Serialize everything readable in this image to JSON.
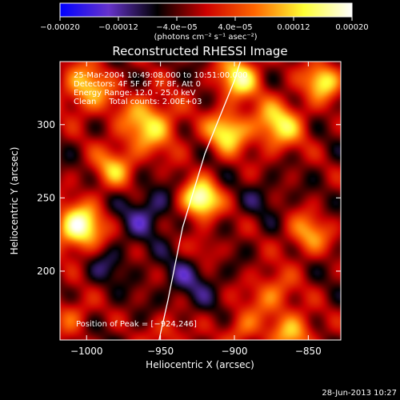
{
  "chart_data": {
    "type": "heatmap",
    "title": "Reconstructed RHESSI Image",
    "xlabel": "Heliocentric X (arcsec)",
    "ylabel": "Heliocentric Y (arcsec)",
    "xlim": [
      -1018,
      -828
    ],
    "ylim": [
      153,
      343
    ],
    "xticks": [
      -1000,
      -950,
      -900,
      -850
    ],
    "xtick_labels": [
      "−1000",
      "−950",
      "−900",
      "−850"
    ],
    "yticks": [
      200,
      250,
      300
    ],
    "ytick_labels": [
      "200",
      "250",
      "300"
    ],
    "info_lines": [
      "25-Mar-2004 10:49:08.000 to 10:51:00.000",
      "Detectors: 4F 5F 6F 7F 8F, Att 0",
      "Energy Range: 12.0 - 25.0 keV",
      "Clean     Total counts: 2.00E+03"
    ],
    "peak_label": "Position of Peak = [−924,246]",
    "peak": [
      -924,
      246
    ],
    "colorbar": {
      "range": [
        -0.0002,
        0.0002
      ],
      "ticks": [
        -0.0002,
        -0.00012,
        -4e-05,
        4e-05,
        0.00012,
        0.0002
      ],
      "tick_labels": [
        "−0.00020",
        "−0.00012",
        "−4.0e−05",
        "4.0e−05",
        "0.00012",
        "0.00020"
      ],
      "unit_label": "(photons cm⁻² s⁻¹ asec⁻²)",
      "colors": [
        "#0000ff",
        "#6633cc",
        "#000000",
        "#cc0000",
        "#ff6600",
        "#ffff33",
        "#ffffff"
      ]
    },
    "blobs": [
      {
        "x": -923,
        "y": 249,
        "r": 9,
        "amp": 0.00023
      },
      {
        "x": -1005,
        "y": 230,
        "r": 11,
        "amp": 0.00022
      },
      {
        "x": -897,
        "y": 332,
        "r": 10,
        "amp": 0.00018
      },
      {
        "x": -905,
        "y": 295,
        "r": 10,
        "amp": 0.00017
      },
      {
        "x": -958,
        "y": 300,
        "r": 14,
        "amp": 0.00015
      },
      {
        "x": -870,
        "y": 300,
        "r": 12,
        "amp": 0.00016
      },
      {
        "x": -840,
        "y": 330,
        "r": 9,
        "amp": 0.00017
      },
      {
        "x": -1000,
        "y": 325,
        "r": 12,
        "amp": 0.00014
      },
      {
        "x": -982,
        "y": 270,
        "r": 10,
        "amp": 0.00012
      },
      {
        "x": -850,
        "y": 225,
        "r": 10,
        "amp": 0.00012
      },
      {
        "x": -875,
        "y": 185,
        "r": 11,
        "amp": 0.0001
      },
      {
        "x": -860,
        "y": 158,
        "r": 10,
        "amp": 0.00013
      },
      {
        "x": -895,
        "y": 160,
        "r": 9,
        "amp": 9e-05
      },
      {
        "x": -1010,
        "y": 170,
        "r": 9,
        "amp": 8e-05
      },
      {
        "x": -945,
        "y": 158,
        "r": 9,
        "amp": 7e-05
      },
      {
        "x": -920,
        "y": 215,
        "r": 8,
        "amp": 6e-05
      },
      {
        "x": -960,
        "y": 240,
        "r": 12,
        "amp": -8e-05
      },
      {
        "x": -930,
        "y": 195,
        "r": 14,
        "amp": -6e-05
      },
      {
        "x": -985,
        "y": 205,
        "r": 10,
        "amp": -5e-05
      },
      {
        "x": -880,
        "y": 250,
        "r": 9,
        "amp": -4e-05
      }
    ],
    "limb_line": [
      [
        -951,
        153
      ],
      [
        -945,
        180
      ],
      [
        -935,
        230
      ],
      [
        -920,
        280
      ],
      [
        -900,
        330
      ],
      [
        -896,
        343
      ]
    ],
    "grid": false
  },
  "footer": {
    "date": "28-Jun-2013 10:27"
  }
}
